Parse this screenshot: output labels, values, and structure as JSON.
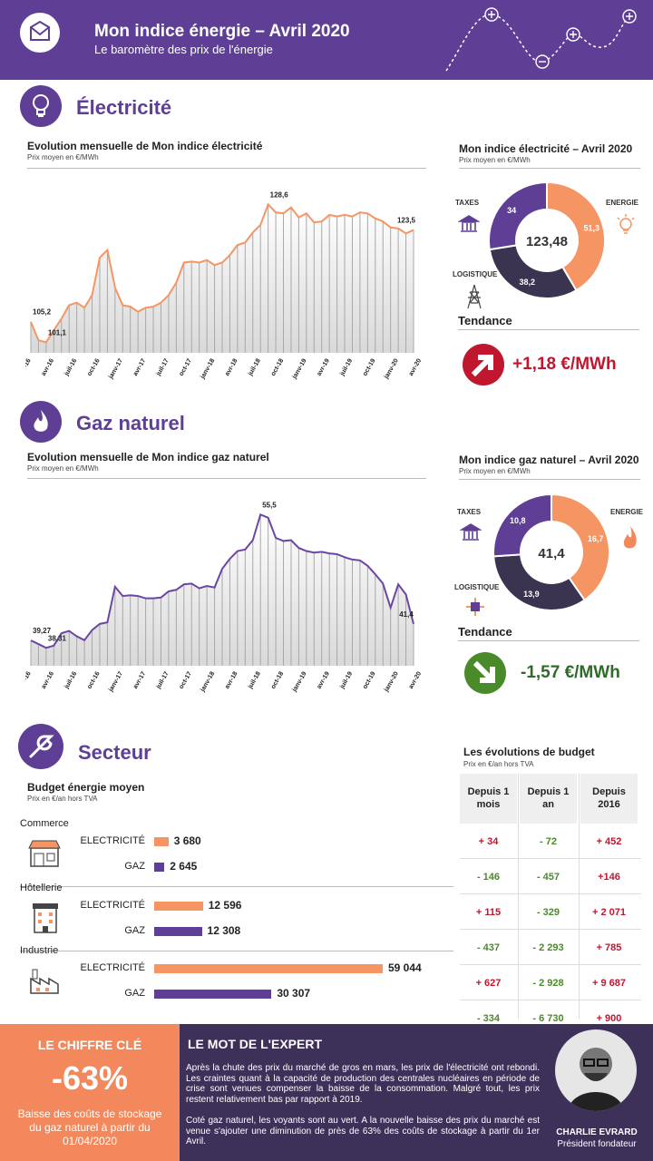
{
  "header": {
    "title": "Mon indice énergie – Avril 2020",
    "subtitle": "Le baromètre des prix de l'énergie"
  },
  "colors": {
    "purple": "#5f3f95",
    "orange": "#f59563",
    "navy": "#3a3450",
    "red": "#c0162e",
    "green": "#4a8a2a"
  },
  "electricity": {
    "section_title": "Électricité",
    "chart_title": "Evolution mensuelle de Mon indice électricité",
    "chart_sub": "Prix moyen en €/MWh",
    "donut_title": "Mon indice électricité – Avril 2020",
    "donut_sub": "Prix moyen en €/MWh",
    "donut_total": "123,48",
    "labels": {
      "taxes": "TAXES",
      "energie": "ENERGIE",
      "logistique": "LOGISTIQUE"
    },
    "tendance_label": "Tendance",
    "tendance_value": "+1,18 €/MWh"
  },
  "gas": {
    "section_title": "Gaz naturel",
    "chart_title": "Evolution mensuelle de Mon indice gaz naturel",
    "chart_sub": "Prix moyen en €/MWh",
    "donut_title": "Mon indice gaz naturel – Avril 2020",
    "donut_sub": "Prix moyen en €/MWh",
    "donut_total": "41,4",
    "labels": {
      "taxes": "TAXES",
      "energie": "ENERGIE",
      "logistique": "LOGISTIQUE"
    },
    "tendance_label": "Tendance",
    "tendance_value": "-1,57 €/MWh"
  },
  "chart_data": [
    {
      "type": "area",
      "x_tick_labels": [
        "janv-16",
        "avr-16",
        "juil-16",
        "oct-16",
        "janv-17",
        "avr-17",
        "juil-17",
        "oct-17",
        "janv-18",
        "avr-18",
        "juil-18",
        "oct-18",
        "janv-19",
        "avr-19",
        "juil-19",
        "oct-19",
        "janv-20",
        "avr-20"
      ],
      "values": [
        105.2,
        101.5,
        101.1,
        103.5,
        105.8,
        108.5,
        109,
        108,
        110.5,
        118,
        119.5,
        112,
        108.5,
        108.2,
        107.2,
        108,
        108.2,
        109,
        110.5,
        113,
        117,
        117.2,
        117,
        117.5,
        116.5,
        117,
        118.5,
        120.5,
        121,
        123,
        124.5,
        128.6,
        127,
        126.8,
        128,
        126,
        126.8,
        125,
        125.2,
        126.5,
        126.2,
        126.5,
        126.2,
        127,
        126.8,
        125.8,
        125.2,
        124,
        123.8,
        122.8,
        123.5
      ],
      "data_labels": {
        "105,2": 0,
        "101,1": 2,
        "128,6": 31,
        "123,5": 50
      },
      "ylim": [
        99,
        133
      ]
    },
    {
      "type": "area",
      "x_tick_labels": [
        "janv-16",
        "avr-16",
        "juil-16",
        "oct-16",
        "janv-17",
        "avr-17",
        "juil-17",
        "oct-17",
        "janv-18",
        "avr-18",
        "juil-18",
        "oct-18",
        "janv-19",
        "avr-19",
        "juil-19",
        "oct-19",
        "janv-20",
        "avr-20"
      ],
      "values": [
        39.27,
        38.8,
        38.31,
        38.6,
        40.2,
        40.5,
        39.8,
        39.3,
        40.6,
        41.4,
        41.6,
        46.2,
        45,
        45.1,
        45,
        44.7,
        44.7,
        44.8,
        45.6,
        45.8,
        46.5,
        46.6,
        46,
        46.3,
        46.1,
        48.5,
        49.8,
        50.8,
        51,
        52.2,
        55.5,
        55.1,
        52.5,
        52.1,
        52.2,
        51.2,
        50.8,
        50.6,
        50.7,
        50.5,
        50.4,
        50,
        49.7,
        49.6,
        48.9,
        47.8,
        46.6,
        43.5,
        46.5,
        45.2,
        41.4
      ],
      "data_labels": {
        "39,27": 0,
        "38,31": 2,
        "55,5": 30,
        "41,4": 50
      },
      "ylim": [
        36,
        58
      ]
    },
    {
      "type": "pie",
      "title": "Mon indice électricité – Avril 2020",
      "slices": [
        {
          "label": "ENERGIE",
          "value": 51.3
        },
        {
          "label": "LOGISTIQUE",
          "value": 38.2
        },
        {
          "label": "TAXES",
          "value": 34
        }
      ],
      "slice_labels": [
        "51,3",
        "38,2",
        "34"
      ]
    },
    {
      "type": "pie",
      "title": "Mon indice gaz naturel – Avril 2020",
      "slices": [
        {
          "label": "ENERGIE",
          "value": 16.7
        },
        {
          "label": "LOGISTIQUE",
          "value": 13.9
        },
        {
          "label": "TAXES",
          "value": 10.8
        }
      ],
      "slice_labels": [
        "16,7",
        "13,9",
        "10,8"
      ]
    }
  ],
  "sector": {
    "section_title": "Secteur",
    "budget_title": "Budget énergie moyen",
    "budget_sub": "Prix en €/an hors TVA",
    "max_value": 59044,
    "rows": [
      {
        "sector": "Commerce",
        "elec_label": "ELECTRICITÉ",
        "elec": 3680,
        "elec_text": "3 680",
        "gas_label": "GAZ",
        "gas": 2645,
        "gas_text": "2 645"
      },
      {
        "sector": "Hôtellerie",
        "elec_label": "ELECTRICITÉ",
        "elec": 12596,
        "elec_text": "12 596",
        "gas_label": "GAZ",
        "gas": 12308,
        "gas_text": "12 308"
      },
      {
        "sector": "Industrie",
        "elec_label": "ELECTRICITÉ",
        "elec": 59044,
        "elec_text": "59 044",
        "gas_label": "GAZ",
        "gas": 30307,
        "gas_text": "30 307"
      }
    ],
    "table_title": "Les évolutions de budget",
    "table_sub": "Prix en €/an hors TVA",
    "table_headers": [
      "Depuis 1 mois",
      "Depuis 1 an",
      "Depuis 2016"
    ],
    "table_rows": [
      [
        "+ 34",
        "- 72",
        "+ 452"
      ],
      [
        "- 146",
        "- 457",
        "+146"
      ],
      [
        "+ 115",
        "- 329",
        "+ 2 071"
      ],
      [
        "- 437",
        "- 2 293",
        "+ 785"
      ],
      [
        "+ 627",
        "- 2 928",
        "+ 9 687"
      ],
      [
        "- 334",
        "- 6 730",
        "+ 900"
      ]
    ]
  },
  "footer": {
    "key_title": "LE CHIFFRE CLÉ",
    "key_value": "-63%",
    "key_text": "Baisse des coûts de stockage du gaz naturel à partir du 01/04/2020",
    "expert_title": "LE MOT DE L'EXPERT",
    "expert_p1": "Après la chute des prix du marché de gros en mars, les prix de l'électricité ont rebondi. Les craintes quant à la capacité de production des centrales nucléaires en période de crise sont venues compenser la baisse de la consommation. Malgré tout, les prix restent relativement bas par rapport à 2019.",
    "expert_p2": "Coté gaz naturel, les voyants sont au vert. A la nouvelle baisse des prix du marché est venue s'ajouter une diminution de près de 63% des coûts de stockage à partir du 1er Avril.",
    "expert_name": "CHARLIE EVRARD",
    "expert_role": "Président fondateur"
  }
}
